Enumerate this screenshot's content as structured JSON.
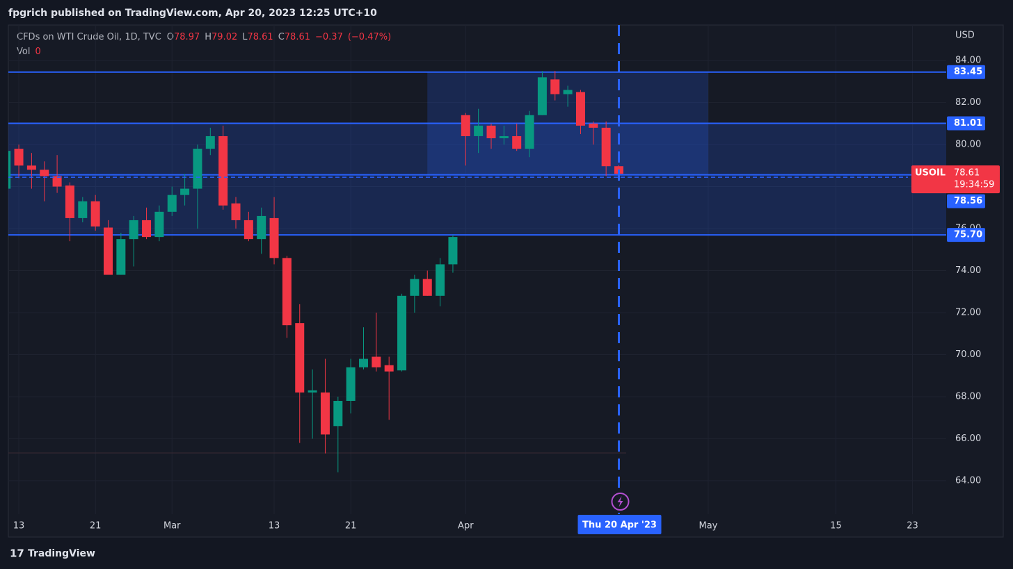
{
  "header": {
    "title": "fpgrich published on TradingView.com, Apr 20, 2023 12:25 UTC+10",
    "brand": "TradingView"
  },
  "chart_data": {
    "type": "candlestick",
    "title": "CFDs on WTI Crude Oil, 1D, TVC",
    "legend_keys": {
      "open": "O",
      "high": "H",
      "low": "L",
      "close": "C"
    },
    "change": {
      "value": -0.37,
      "label": "−0.37"
    },
    "change_pct": {
      "value": -0.47,
      "label": "(−0.47%)"
    },
    "volume_label": "Vol",
    "volume": 0,
    "currency": "USD",
    "symbol": "USOIL",
    "last": 78.61,
    "countdown": "19:34:59",
    "up_color": "#089981",
    "down_color": "#f23645",
    "level_color": "#2962ff",
    "categories": [
      "2023-02-10",
      "2023-02-13",
      "2023-02-14",
      "2023-02-15",
      "2023-02-16",
      "2023-02-17",
      "2023-02-20",
      "2023-02-21",
      "2023-02-22",
      "2023-02-23",
      "2023-02-24",
      "2023-02-27",
      "2023-02-28",
      "2023-03-01",
      "2023-03-02",
      "2023-03-03",
      "2023-03-06",
      "2023-03-07",
      "2023-03-08",
      "2023-03-09",
      "2023-03-10",
      "2023-03-13",
      "2023-03-14",
      "2023-03-15",
      "2023-03-16",
      "2023-03-17",
      "2023-03-20",
      "2023-03-21",
      "2023-03-22",
      "2023-03-23",
      "2023-03-24",
      "2023-03-27",
      "2023-03-28",
      "2023-03-29",
      "2023-03-30",
      "2023-03-31",
      "2023-04-03",
      "2023-04-04",
      "2023-04-05",
      "2023-04-06",
      "2023-04-10",
      "2023-04-11",
      "2023-04-12",
      "2023-04-13",
      "2023-04-14",
      "2023-04-17",
      "2023-04-18",
      "2023-04-19",
      "2023-04-20"
    ],
    "open": [
      77.9,
      79.8,
      79.0,
      78.8,
      78.5,
      78.05,
      76.5,
      77.3,
      76.05,
      73.8,
      75.5,
      76.4,
      75.6,
      76.8,
      77.6,
      77.9,
      79.8,
      80.4,
      77.2,
      76.4,
      75.5,
      76.5,
      74.6,
      71.5,
      68.2,
      68.2,
      66.6,
      67.8,
      69.4,
      69.9,
      69.5,
      69.25,
      72.8,
      73.6,
      72.8,
      74.3,
      81.4,
      80.4,
      80.9,
      80.3,
      80.4,
      79.8,
      81.4,
      83.1,
      82.4,
      82.5,
      81.0,
      80.8,
      78.97
    ],
    "high": [
      80.1,
      80.0,
      79.6,
      79.2,
      79.5,
      78.2,
      77.5,
      77.6,
      76.4,
      75.8,
      76.6,
      77.0,
      77.1,
      78.0,
      78.6,
      80.0,
      80.8,
      80.9,
      77.5,
      76.8,
      77.0,
      77.5,
      74.7,
      72.4,
      69.3,
      69.8,
      68.0,
      69.8,
      71.3,
      72.0,
      69.9,
      72.9,
      73.8,
      74.0,
      74.6,
      75.7,
      81.5,
      81.7,
      81.0,
      80.9,
      81.0,
      81.6,
      83.5,
      83.5,
      82.8,
      82.6,
      81.1,
      81.1,
      79.02
    ],
    "low": [
      77.3,
      78.4,
      77.9,
      77.3,
      77.7,
      75.4,
      76.3,
      75.9,
      73.8,
      73.8,
      74.2,
      75.5,
      75.4,
      76.6,
      77.1,
      76.0,
      79.5,
      76.9,
      76.0,
      75.4,
      74.8,
      74.3,
      70.8,
      65.8,
      66.0,
      65.3,
      64.4,
      67.2,
      69.3,
      69.2,
      66.9,
      69.2,
      72.0,
      72.8,
      72.3,
      73.9,
      79.0,
      79.6,
      79.8,
      80.0,
      79.7,
      79.4,
      81.4,
      82.1,
      81.8,
      80.5,
      80.0,
      78.5,
      78.61
    ],
    "close": [
      79.7,
      79.0,
      78.8,
      78.5,
      78.0,
      76.5,
      77.3,
      76.1,
      73.8,
      75.5,
      76.4,
      75.6,
      76.8,
      77.6,
      77.9,
      79.8,
      80.4,
      77.1,
      76.4,
      75.5,
      76.6,
      74.6,
      71.4,
      68.2,
      68.3,
      66.2,
      67.8,
      69.4,
      69.8,
      69.4,
      69.2,
      72.8,
      73.6,
      72.8,
      74.3,
      75.6,
      80.4,
      80.9,
      80.3,
      80.4,
      79.8,
      81.4,
      83.2,
      82.4,
      82.6,
      80.9,
      80.8,
      78.97,
      78.61
    ],
    "ylim": [
      62.41,
      85.69
    ],
    "yticks": [
      {
        "value": 64,
        "label": "64.00"
      },
      {
        "value": 66,
        "label": "66.00"
      },
      {
        "value": 68,
        "label": "68.00"
      },
      {
        "value": 70,
        "label": "70.00"
      },
      {
        "value": 72,
        "label": "72.00"
      },
      {
        "value": 74,
        "label": "74.00"
      },
      {
        "value": 76,
        "label": "76.00"
      },
      {
        "value": 78,
        "label": "78.00"
      },
      {
        "value": 80,
        "label": "80.00"
      },
      {
        "value": 82,
        "label": "82.00"
      },
      {
        "value": 84,
        "label": "84.00"
      }
    ],
    "xticks": [
      {
        "value": "2023-02-13",
        "label": "13"
      },
      {
        "value": "2023-02-21",
        "label": "21"
      },
      {
        "value": "2023-03-01",
        "label": "Mar"
      },
      {
        "value": "2023-03-13",
        "label": "13"
      },
      {
        "value": "2023-03-21",
        "label": "21"
      },
      {
        "value": "2023-04-03",
        "label": "Apr"
      },
      {
        "value": "2023-05-01",
        "label": "May"
      },
      {
        "value": "2023-05-15",
        "label": "15"
      },
      {
        "value": "2023-05-23",
        "label": "23"
      }
    ],
    "crosshair": {
      "value": "2023-04-20",
      "label": "Thu 20 Apr '23"
    },
    "levels": [
      {
        "value": 83.45,
        "label": "83.45"
      },
      {
        "value": 81.01,
        "label": "81.01"
      },
      {
        "value": 78.56,
        "label": "78.56"
      },
      {
        "value": 75.7,
        "label": "75.70"
      }
    ],
    "zones": [
      {
        "from": "2023-03-29",
        "to": "2023-05-01",
        "top": 83.45,
        "bottom": 78.56
      },
      {
        "top": 81.01,
        "bottom": 75.7
      }
    ]
  }
}
